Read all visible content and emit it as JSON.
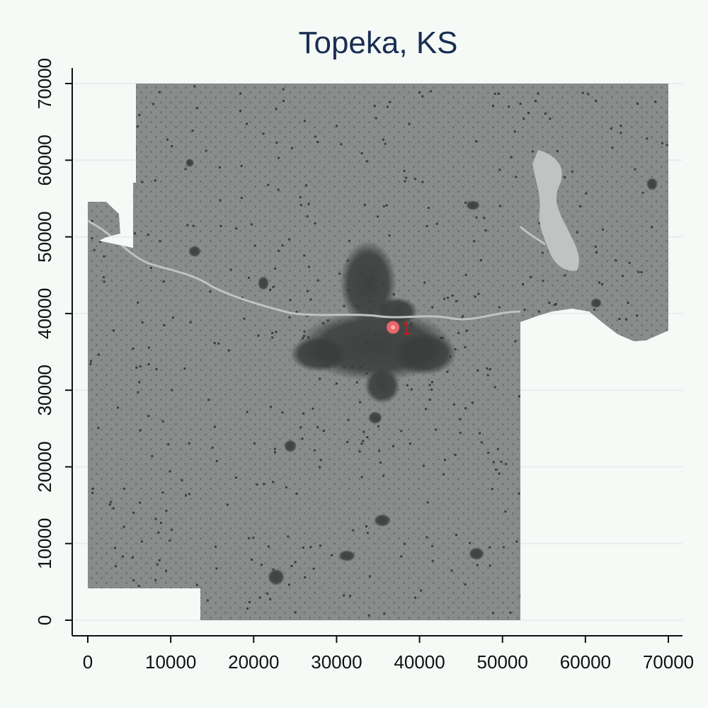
{
  "map": {
    "title": "Topeka, KS",
    "x_axis": {
      "min": 0,
      "max": 70000,
      "ticks": [
        0,
        10000,
        20000,
        30000,
        40000,
        50000,
        60000,
        70000
      ],
      "tick_labels": [
        "0",
        "10000",
        "20000",
        "30000",
        "40000",
        "50000",
        "60000",
        "70000"
      ]
    },
    "y_axis": {
      "min": 0,
      "max": 70000,
      "ticks": [
        0,
        10000,
        20000,
        30000,
        40000,
        50000,
        60000,
        70000
      ],
      "tick_labels": [
        "0",
        "10000",
        "20000",
        "30000",
        "40000",
        "50000",
        "60000",
        "70000"
      ]
    },
    "grid": "horizontal",
    "colors": {
      "background": "#f5faf7",
      "region_fill": "#8a8c8b",
      "developed_fill": "#3b3d3c",
      "water": "#bfc3c1",
      "grid": "#e6eeee",
      "marker": "#e8666a",
      "marker_label": "#c21a1a"
    },
    "marker": {
      "label": "1",
      "x": 36800,
      "y": 38200
    }
  }
}
